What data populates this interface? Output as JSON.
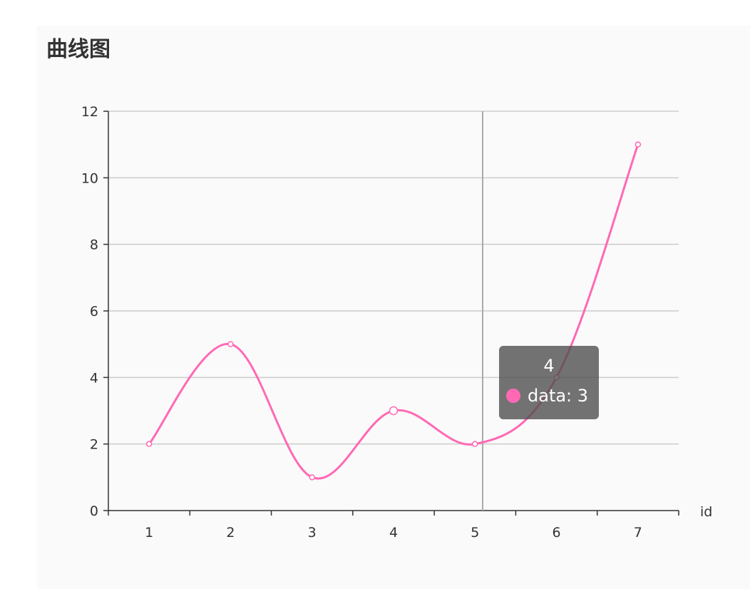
{
  "title": "曲线图",
  "chart_data": {
    "type": "line",
    "smooth": true,
    "title": "曲线图",
    "xlabel": "id",
    "ylabel": "",
    "categories": [
      "1",
      "2",
      "3",
      "4",
      "5",
      "6",
      "7"
    ],
    "series": [
      {
        "name": "data",
        "values": [
          2,
          5,
          1,
          3,
          2,
          4,
          11
        ],
        "color": "#ff69b4"
      }
    ],
    "ylim": [
      0,
      12
    ],
    "yticks": [
      0,
      2,
      4,
      6,
      8,
      10,
      12
    ],
    "grid": true,
    "legend": "none",
    "tooltip": {
      "title": "4",
      "label": "data: 3"
    }
  }
}
